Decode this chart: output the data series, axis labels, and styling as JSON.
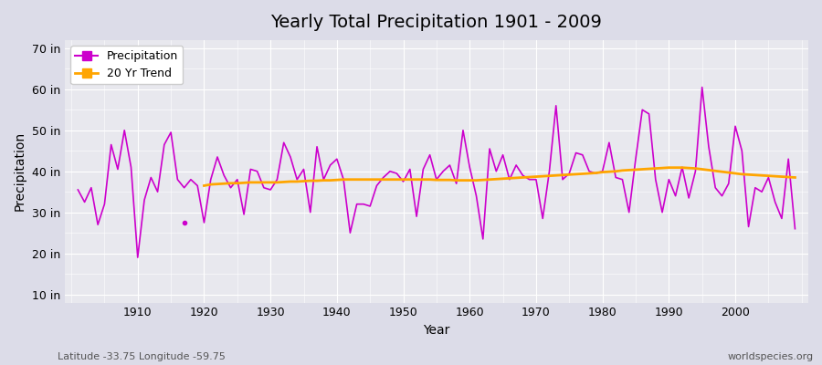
{
  "title": "Yearly Total Precipitation 1901 - 2009",
  "xlabel": "Year",
  "ylabel": "Precipitation",
  "bg_color": "#e8e8ee",
  "plot_bg_color": "#e8e8ee",
  "precip_color": "#cc00cc",
  "trend_color": "#ffa500",
  "years": [
    1901,
    1902,
    1903,
    1904,
    1905,
    1906,
    1907,
    1908,
    1909,
    1910,
    1911,
    1912,
    1913,
    1914,
    1915,
    1916,
    1917,
    1918,
    1919,
    1920,
    1921,
    1922,
    1923,
    1924,
    1925,
    1926,
    1927,
    1928,
    1929,
    1930,
    1931,
    1932,
    1933,
    1934,
    1935,
    1936,
    1937,
    1938,
    1939,
    1940,
    1941,
    1942,
    1943,
    1944,
    1945,
    1946,
    1947,
    1948,
    1949,
    1950,
    1951,
    1952,
    1953,
    1954,
    1955,
    1956,
    1957,
    1958,
    1959,
    1960,
    1961,
    1962,
    1963,
    1964,
    1965,
    1966,
    1967,
    1968,
    1969,
    1970,
    1971,
    1972,
    1973,
    1974,
    1975,
    1976,
    1977,
    1978,
    1979,
    1980,
    1981,
    1982,
    1983,
    1984,
    1985,
    1986,
    1987,
    1988,
    1989,
    1990,
    1991,
    1992,
    1993,
    1994,
    1995,
    1996,
    1997,
    1998,
    1999,
    2000,
    2001,
    2002,
    2003,
    2004,
    2005,
    2006,
    2007,
    2008,
    2009
  ],
  "precip": [
    35.5,
    32.5,
    36.0,
    27.0,
    32.0,
    46.5,
    40.5,
    50.0,
    41.0,
    19.0,
    33.0,
    38.5,
    35.0,
    46.5,
    49.5,
    38.0,
    36.0,
    38.0,
    36.5,
    27.5,
    38.0,
    43.5,
    39.0,
    36.0,
    38.0,
    29.5,
    40.5,
    40.0,
    36.0,
    35.5,
    38.0,
    47.0,
    43.5,
    38.0,
    40.5,
    30.0,
    46.0,
    38.0,
    41.5,
    43.0,
    38.0,
    25.0,
    32.0,
    32.0,
    31.5,
    36.5,
    38.5,
    40.0,
    39.5,
    37.5,
    40.5,
    29.0,
    40.5,
    44.0,
    38.0,
    40.0,
    41.5,
    37.0,
    50.0,
    41.0,
    34.0,
    23.5,
    45.5,
    40.0,
    44.0,
    38.0,
    41.5,
    39.0,
    38.0,
    38.0,
    28.5,
    40.0,
    56.0,
    38.0,
    39.5,
    44.5,
    44.0,
    40.0,
    39.5,
    40.0,
    47.0,
    38.5,
    38.0,
    30.0,
    43.0,
    55.0,
    54.0,
    38.0,
    30.0,
    38.0,
    34.0,
    41.0,
    33.5,
    40.0,
    60.5,
    46.0,
    36.0,
    34.0,
    37.0,
    51.0,
    45.0,
    26.5,
    36.0,
    35.0,
    38.5,
    32.5,
    28.5,
    43.0,
    26.0
  ],
  "trend_years": [
    1920,
    1921,
    1922,
    1923,
    1924,
    1925,
    1926,
    1927,
    1928,
    1929,
    1930,
    1931,
    1932,
    1933,
    1934,
    1935,
    1936,
    1937,
    1938,
    1939,
    1940,
    1941,
    1942,
    1943,
    1944,
    1945,
    1946,
    1947,
    1948,
    1949,
    1950,
    1951,
    1952,
    1953,
    1954,
    1955,
    1956,
    1957,
    1958,
    1959,
    1960,
    1961,
    1962,
    1963,
    1964,
    1965,
    1966,
    1967,
    1968,
    1969,
    1970,
    1971,
    1972,
    1973,
    1974,
    1975,
    1976,
    1977,
    1978,
    1979,
    1980,
    1981,
    1982,
    1983,
    1984,
    1985,
    1986,
    1987,
    1988,
    1989,
    1990,
    1991,
    1992,
    1993,
    1994,
    1995,
    1996,
    1997,
    1998,
    1999,
    2000,
    2001,
    2002,
    2003,
    2004,
    2005,
    2006,
    2007,
    2008,
    2009
  ],
  "trend": [
    36.5,
    36.8,
    36.9,
    37.0,
    37.1,
    37.1,
    37.2,
    37.3,
    37.3,
    37.3,
    37.3,
    37.3,
    37.4,
    37.5,
    37.5,
    37.6,
    37.7,
    37.7,
    37.8,
    37.8,
    37.9,
    38.0,
    38.0,
    38.0,
    38.0,
    38.0,
    38.0,
    38.0,
    38.0,
    38.0,
    38.0,
    38.0,
    38.0,
    38.0,
    38.0,
    37.9,
    37.9,
    37.9,
    37.8,
    37.8,
    37.8,
    37.8,
    37.9,
    38.0,
    38.1,
    38.2,
    38.3,
    38.4,
    38.5,
    38.6,
    38.7,
    38.8,
    38.9,
    39.0,
    39.1,
    39.2,
    39.3,
    39.4,
    39.5,
    39.6,
    39.8,
    39.9,
    40.0,
    40.2,
    40.3,
    40.4,
    40.5,
    40.6,
    40.7,
    40.8,
    40.9,
    40.9,
    40.9,
    40.8,
    40.7,
    40.5,
    40.3,
    40.1,
    39.9,
    39.7,
    39.5,
    39.3,
    39.2,
    39.1,
    39.0,
    38.9,
    38.8,
    38.7,
    38.6,
    38.5
  ],
  "yticks": [
    10,
    20,
    30,
    40,
    50,
    60,
    70
  ],
  "ytick_labels": [
    "10 in",
    "20 in",
    "30 in",
    "40 in",
    "50 in",
    "60 in",
    "70 in"
  ],
  "ylim": [
    8,
    72
  ],
  "xlim": [
    1899,
    2011
  ],
  "xticks": [
    1910,
    1920,
    1930,
    1940,
    1950,
    1960,
    1970,
    1980,
    1990,
    2000
  ],
  "footnote_left": "Latitude -33.75 Longitude -59.75",
  "footnote_right": "worldspecies.org",
  "legend_precip": "Precipitation",
  "legend_trend": "20 Yr Trend"
}
